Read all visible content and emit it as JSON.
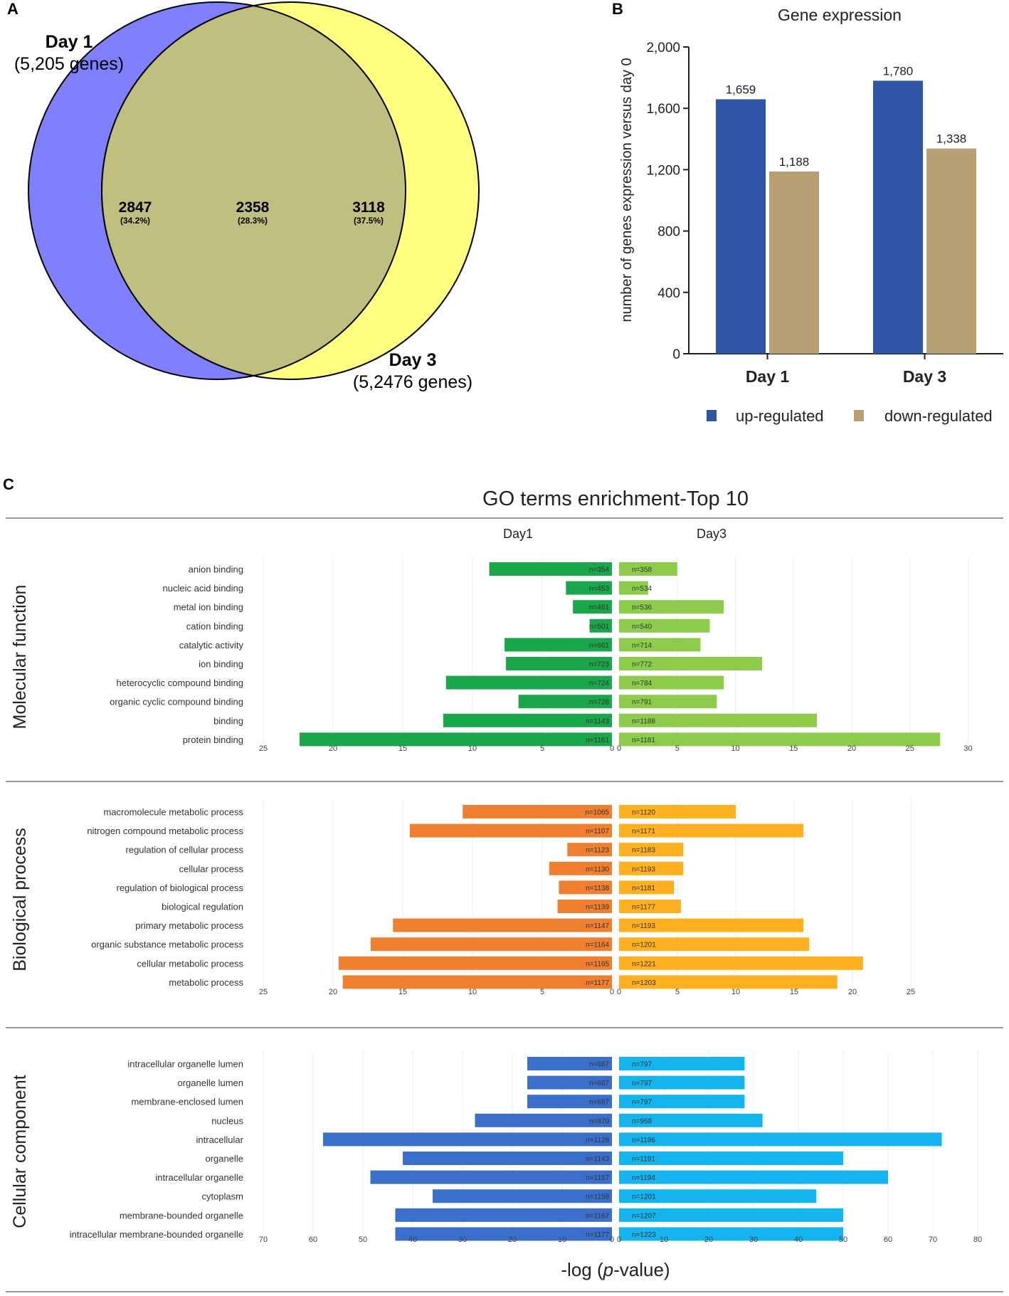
{
  "panel_labels": {
    "a": "A",
    "b": "B",
    "c": "C"
  },
  "venn": {
    "day1": {
      "title": "Day 1",
      "subtitle": "(5,205 genes)",
      "only_count": "2847",
      "only_pct": "(34.2%)",
      "color": "#8080ff"
    },
    "day3": {
      "title": "Day 3",
      "subtitle": "(5,2476 genes)",
      "only_count": "3118",
      "only_pct": "(37.5%)",
      "color": "#ffff80"
    },
    "overlap": {
      "count": "2358",
      "pct": "(28.3%)",
      "color": "#bfbf80"
    }
  },
  "chart_data": [
    {
      "type": "bar",
      "title": "Gene expression",
      "ylabel": "number of genes expression versus day 0",
      "ylim": [
        0,
        2000
      ],
      "yticks": [
        "0",
        "400",
        "800",
        "1,200",
        "1,600",
        "2,000"
      ],
      "ytick_values": [
        0,
        400,
        800,
        1200,
        1600,
        2000
      ],
      "categories": [
        "Day 1",
        "Day 3"
      ],
      "series": [
        {
          "name": "up-regulated",
          "color": "#2e55a6",
          "values": [
            1659,
            1780
          ],
          "labels": [
            "1,659",
            "1,780"
          ]
        },
        {
          "name": "down-regulated",
          "color": "#b8a074",
          "values": [
            1188,
            1338
          ],
          "labels": [
            "1,188",
            "1,338"
          ]
        }
      ]
    },
    {
      "type": "bar",
      "orientation": "horizontal-butterfly",
      "title": "GO terms enrichment-Top 10",
      "xlabel_prefix": "-log (",
      "xlabel_italic": "p",
      "xlabel_suffix": "-value)",
      "day_labels": [
        "Day1",
        "Day3"
      ],
      "panels": [
        {
          "name": "Molecular function",
          "left_max": 25,
          "right_max": 30,
          "left_ticks": [
            0,
            5,
            10,
            15,
            20,
            25
          ],
          "right_ticks": [
            0,
            5,
            10,
            15,
            20,
            25,
            30
          ],
          "color_day1": "#1aa64a",
          "color_day3": "#8ccc4a",
          "terms": [
            "anion binding",
            "nucleic acid binding",
            "metal ion binding",
            "cation binding",
            "catalytic activity",
            "ion binding",
            "heterocyclic compound binding",
            "organic cyclic compound binding",
            "binding",
            "protein binding"
          ],
          "day1_values": [
            8.8,
            3.3,
            2.8,
            1.6,
            7.7,
            7.6,
            11.9,
            6.7,
            12.1,
            22.4
          ],
          "day1_n": [
            "n=354",
            "n=453",
            "n=461",
            "n=501",
            "n=661",
            "n=723",
            "n=724",
            "n=728",
            "n=1143",
            "n=1161"
          ],
          "day3_values": [
            5.0,
            2.5,
            9.0,
            7.8,
            7.0,
            12.3,
            9.0,
            8.4,
            17.0,
            27.6
          ],
          "day3_n": [
            "n=358",
            "n=534",
            "n=536",
            "n=540",
            "n=714",
            "n=772",
            "n=784",
            "n=791",
            "n=1188",
            "n=1181"
          ]
        },
        {
          "name": "Biological process",
          "left_max": 25,
          "right_max": 25,
          "left_ticks": [
            0,
            5,
            10,
            15,
            20,
            25
          ],
          "right_ticks": [
            0,
            5,
            10,
            15,
            20,
            25
          ],
          "color_day1": "#f08030",
          "color_day3": "#ffb020",
          "terms": [
            "macromolecule metabolic process",
            "nitrogen compound metabolic process",
            "regulation of cellular process",
            "cellular process",
            "regulation of biological process",
            "biological regulation",
            "primary metabolic process",
            "organic substance metabolic process",
            "cellular metabolic process",
            "metabolic process"
          ],
          "day1_values": [
            10.7,
            14.5,
            3.2,
            4.5,
            3.8,
            3.9,
            15.7,
            17.3,
            19.6,
            19.3
          ],
          "day1_n": [
            "n=1065",
            "n=1107",
            "n=1123",
            "n=1130",
            "n=1138",
            "n=1139",
            "n=1147",
            "n=1164",
            "n=1165",
            "n=1177"
          ],
          "day3_values": [
            10.0,
            15.8,
            5.5,
            5.5,
            4.7,
            5.3,
            15.8,
            16.3,
            20.9,
            18.7
          ],
          "day3_n": [
            "n=1120",
            "n=1171",
            "n=1183",
            "n=1193",
            "n=1181",
            "n=1177",
            "n=1193",
            "n=1201",
            "n=1221",
            "n=1203"
          ]
        },
        {
          "name": "Cellular component",
          "left_max": 70,
          "right_max": 80,
          "left_ticks": [
            0,
            10,
            20,
            30,
            40,
            50,
            60,
            70
          ],
          "right_ticks": [
            0,
            10,
            20,
            30,
            40,
            50,
            60,
            70,
            80
          ],
          "color_day1": "#3a6fcc",
          "color_day3": "#14b4ee",
          "terms": [
            "intracellular organelle lumen",
            "organelle lumen",
            "membrane-enclosed lumen",
            "nucleus",
            "intracellular",
            "organelle",
            "intracellular organelle",
            "cytoplasm",
            "membrane-bounded organelle",
            "intracellular membrane-bounded organelle"
          ],
          "day1_values": [
            17,
            17,
            17,
            27.5,
            58,
            42,
            48.5,
            36,
            43.5,
            43.5
          ],
          "day1_n": [
            "n=687",
            "n=687",
            "n=687",
            "n=870",
            "n=1128",
            "n=1143",
            "n=1157",
            "n=1158",
            "n=1167",
            "n=1177"
          ],
          "day3_values": [
            28,
            28,
            28,
            32,
            72,
            50,
            60,
            44,
            50,
            50
          ],
          "day3_n": [
            "n=797",
            "n=797",
            "n=797",
            "n=968",
            "n=1196",
            "n=1191",
            "n=1194",
            "n=1201",
            "n=1207",
            "n=1223"
          ]
        }
      ]
    }
  ]
}
